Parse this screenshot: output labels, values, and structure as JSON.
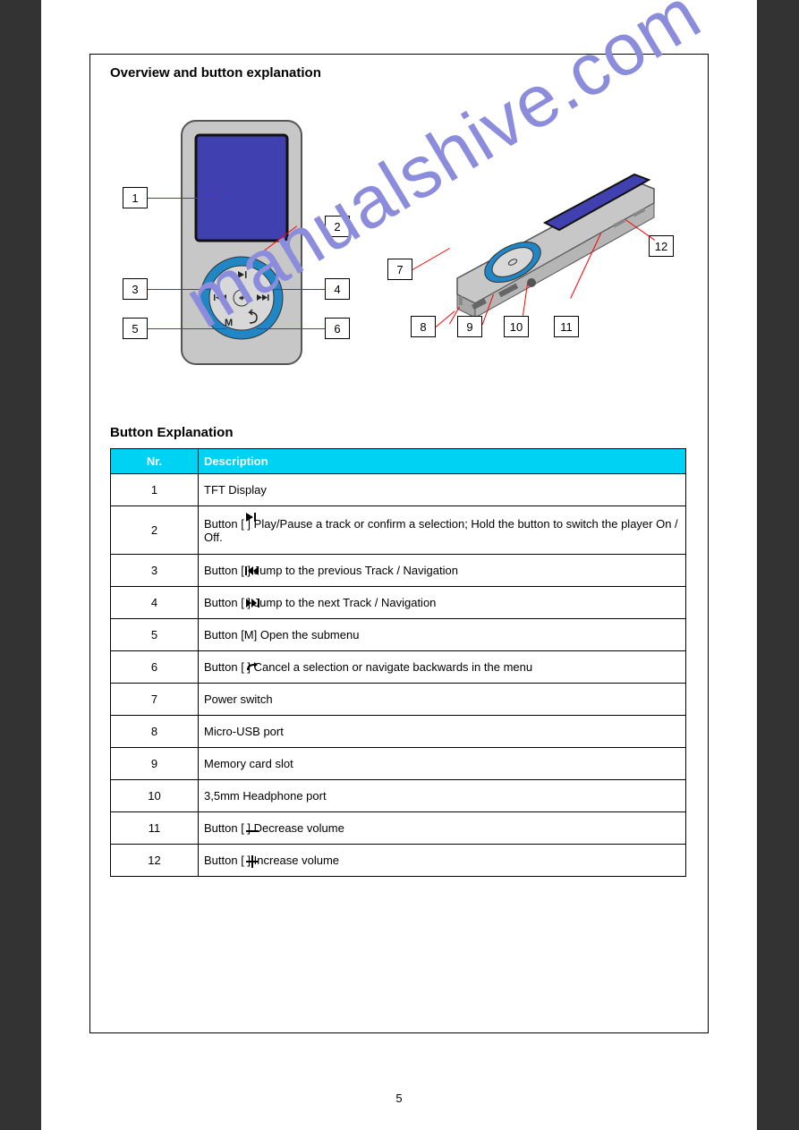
{
  "section": {
    "title": "Overview and button explanation",
    "subtitle": "Button Explanation"
  },
  "callouts": {
    "c1": "1",
    "c2": "2",
    "c3": "3",
    "c4": "4",
    "c5": "5",
    "c6": "6",
    "c7": "7",
    "c8": "8",
    "c9": "9",
    "c10": "10",
    "c11": "11",
    "c12": "12"
  },
  "table": {
    "headers": {
      "num": "Nr.",
      "desc": "Description"
    },
    "rows": [
      {
        "n": "1",
        "d": "TFT Display"
      },
      {
        "n": "2",
        "d": "Button [      ] Play/Pause a track or confirm a selection; Hold the button to switch the player On / Off."
      },
      {
        "n": "3",
        "d": "Button [      ] Jump to the previous Track / Navigation"
      },
      {
        "n": "4",
        "d": "Button [      ] Jump to the next Track / Navigation"
      },
      {
        "n": "5",
        "d": "Button [M] Open the submenu"
      },
      {
        "n": "6",
        "d": "Button [     ] Cancel a selection or navigate backwards in the menu"
      },
      {
        "n": "7",
        "d": "Power switch"
      },
      {
        "n": "8",
        "d": "Micro-USB port"
      },
      {
        "n": "9",
        "d": "Memory card slot"
      },
      {
        "n": "10",
        "d": "3,5mm Headphone port"
      },
      {
        "n": "11",
        "d": "Button [     ] Decrease volume"
      },
      {
        "n": "12",
        "d": "Button [     ] Increase volume"
      }
    ]
  },
  "pageNumber": "5",
  "colors": {
    "highlight": "#00d2f3",
    "watermark": "#8c8cdc",
    "leader": "#f00",
    "deviceBody": "#c7c7c7",
    "deviceScreen": "#3232a8",
    "wheelRing": "#2086c4"
  }
}
